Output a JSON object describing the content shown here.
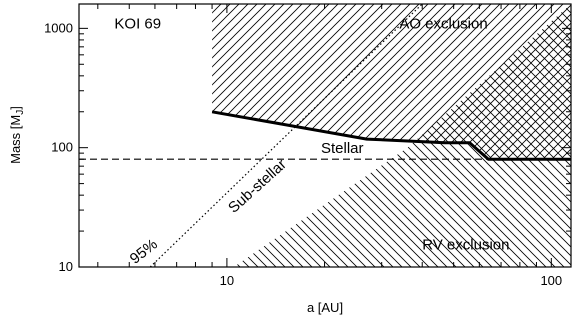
{
  "chart_data": {
    "type": "line",
    "title": "",
    "xlabel": "a [AU]",
    "ylabel_main": "Mass [M",
    "ylabel_sub": "J",
    "ylabel_close": "]",
    "xscale": "log",
    "yscale": "log",
    "xlim": [
      3.5,
      115
    ],
    "ylim": [
      10,
      1600
    ],
    "x_ticks": [
      {
        "value": 10,
        "label": "10"
      },
      {
        "value": 100,
        "label": "100"
      }
    ],
    "y_ticks": [
      {
        "value": 10,
        "label": "10"
      },
      {
        "value": 100,
        "label": "100"
      },
      {
        "value": 1000,
        "label": "1000"
      }
    ],
    "regions": [
      {
        "name": "AO exclusion",
        "hatch": "diagonal-up",
        "polygon": [
          [
            9,
            1600
          ],
          [
            115,
            1600
          ],
          [
            115,
            80
          ],
          [
            64,
            80
          ],
          [
            56,
            110
          ],
          [
            47,
            110
          ],
          [
            27,
            118
          ],
          [
            9,
            200
          ]
        ]
      },
      {
        "name": "RV exclusion",
        "hatch": "diagonal-down",
        "polygon": [
          [
            10.5,
            10
          ],
          [
            115,
            10
          ],
          [
            115,
            1600
          ],
          [
            36,
            100
          ]
        ]
      }
    ],
    "series": [
      {
        "role": "ao_limit",
        "style": "solid-thick",
        "x": [
          9,
          27,
          47,
          56,
          64,
          115
        ],
        "y": [
          200,
          118,
          110,
          110,
          80,
          80
        ]
      },
      {
        "role": "stellar_boundary",
        "style": "dashed",
        "x": [
          3.5,
          115
        ],
        "y": [
          80,
          80
        ]
      },
      {
        "role": "confidence_95",
        "style": "dotted",
        "x": [
          5.8,
          40
        ],
        "y": [
          10,
          1600
        ]
      }
    ],
    "annotations": {
      "target": "KOI 69",
      "ao": "AO exclusion",
      "rv": "RV exclusion",
      "stellar": "Stellar",
      "substellar": "Sub-stellar",
      "pct": "95%"
    },
    "annotation_positions": {
      "target": [
        4.5,
        1000
      ],
      "ao": [
        34,
        1000
      ],
      "rv": [
        40,
        14
      ],
      "stellar": [
        19.5,
        90
      ],
      "substellar": [
        10.5,
        28
      ],
      "pct": [
        5.2,
        10.5
      ]
    },
    "grid": false,
    "legend": "none"
  }
}
